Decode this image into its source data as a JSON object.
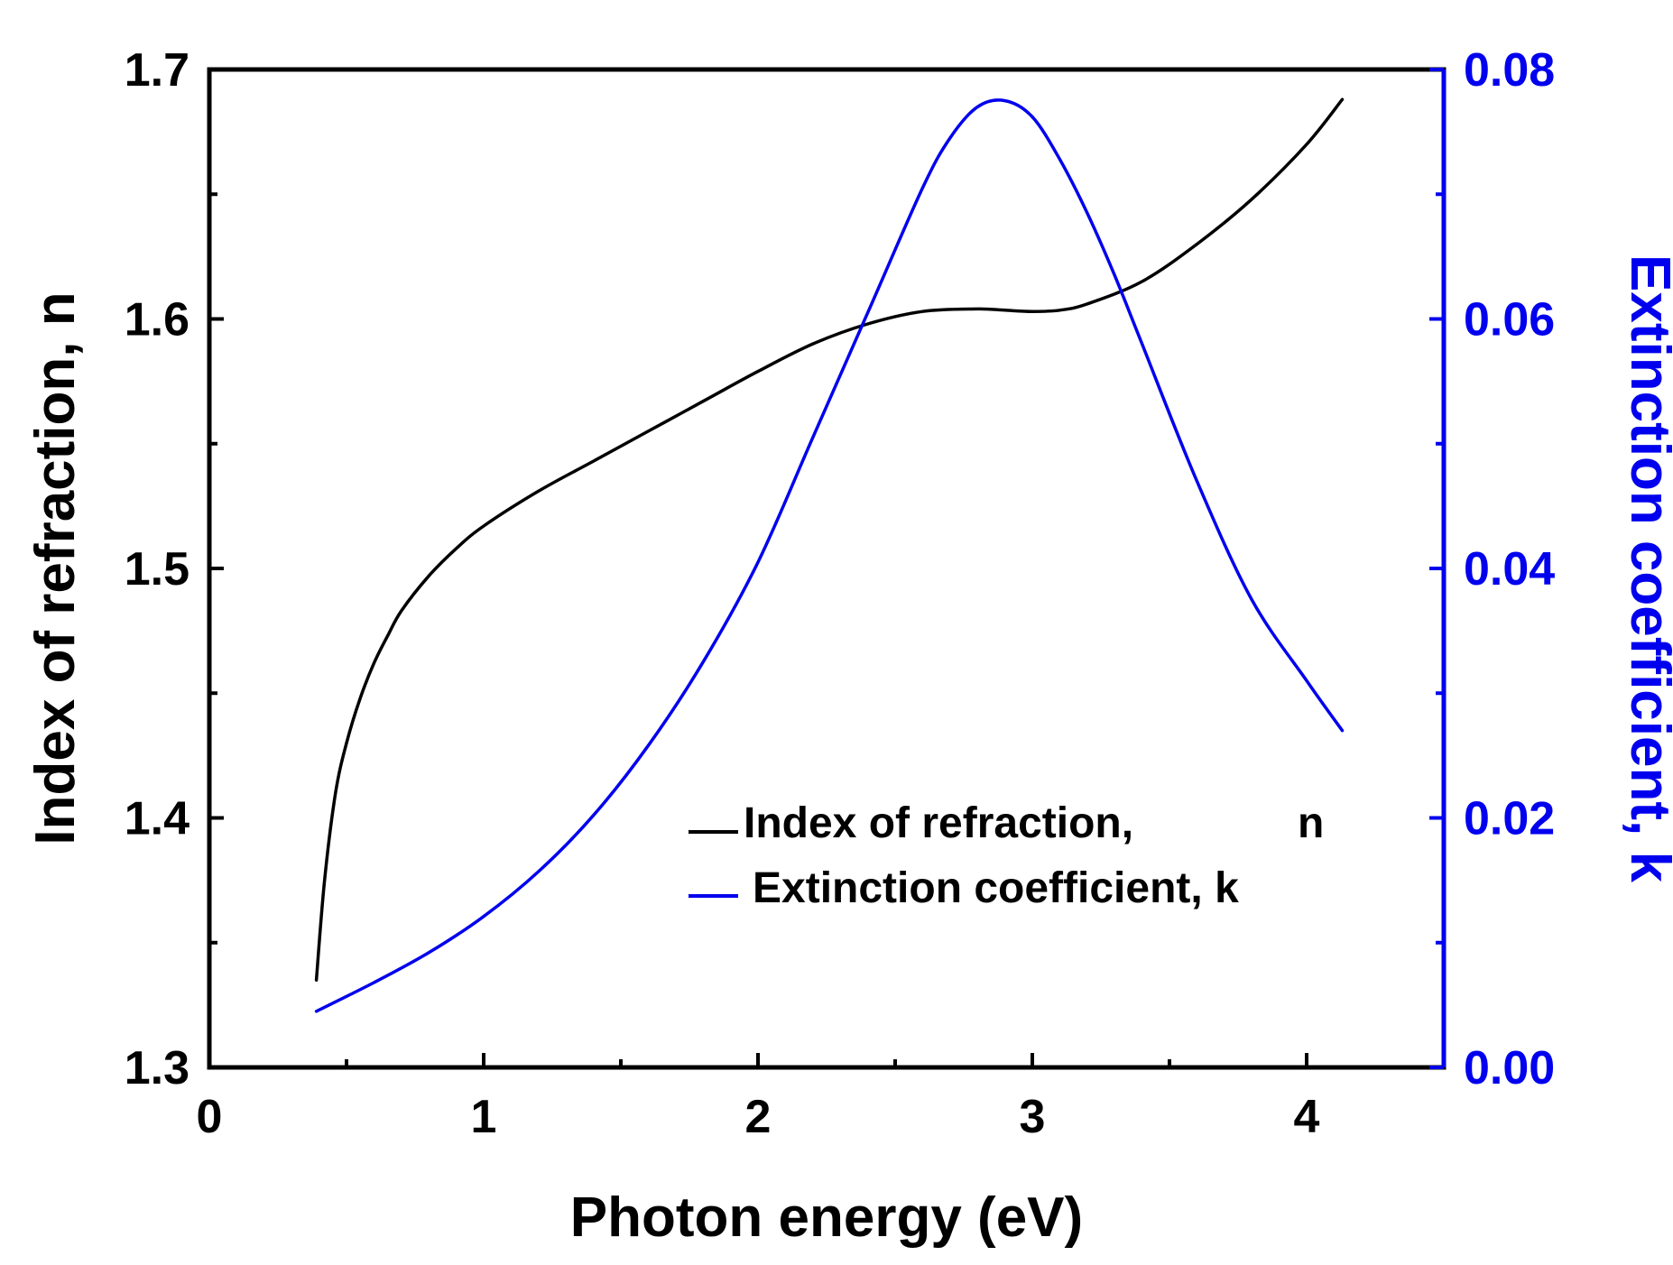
{
  "chart_data": {
    "type": "line",
    "title": "",
    "xlabel": "Photon energy (eV)",
    "ylabel": "Index of refraction, n",
    "ylabel_right": "Extinction coefficient, k",
    "xlim": [
      0,
      4.5
    ],
    "ylim": [
      1.3,
      1.7
    ],
    "ylim_right": [
      0.0,
      0.08
    ],
    "x_ticks": [
      "0",
      "1",
      "2",
      "3",
      "4"
    ],
    "y_ticks": [
      "1.3",
      "1.4",
      "1.5",
      "1.6",
      "1.7"
    ],
    "y_right_ticks": [
      "0.00",
      "0.02",
      "0.04",
      "0.06",
      "0.08"
    ],
    "grid": false,
    "legend_position": "bottom-right",
    "series": [
      {
        "name": "Index of refraction,",
        "name_suffix": "n",
        "axis": "left",
        "color": "#000000",
        "x": [
          0.39,
          0.42,
          0.46,
          0.5,
          0.55,
          0.6,
          0.65,
          0.7,
          0.8,
          0.9,
          1.0,
          1.2,
          1.4,
          1.6,
          1.8,
          2.0,
          2.2,
          2.4,
          2.6,
          2.8,
          2.9,
          3.0,
          3.1,
          3.2,
          3.4,
          3.6,
          3.8,
          4.0,
          4.13
        ],
        "y": [
          1.335,
          1.375,
          1.41,
          1.43,
          1.448,
          1.462,
          1.473,
          1.483,
          1.497,
          1.508,
          1.517,
          1.531,
          1.543,
          1.555,
          1.567,
          1.579,
          1.59,
          1.598,
          1.603,
          1.604,
          1.6035,
          1.603,
          1.6035,
          1.606,
          1.615,
          1.63,
          1.648,
          1.67,
          1.688
        ]
      },
      {
        "name": "Extinction coefficient, k",
        "axis": "right",
        "color": "#0000ee",
        "x": [
          0.39,
          0.6,
          0.8,
          1.0,
          1.2,
          1.4,
          1.6,
          1.8,
          2.0,
          2.2,
          2.4,
          2.6,
          2.7,
          2.8,
          2.9,
          3.0,
          3.1,
          3.2,
          3.3,
          3.4,
          3.6,
          3.8,
          4.0,
          4.13
        ],
        "y": [
          0.0045,
          0.0068,
          0.0092,
          0.0121,
          0.0157,
          0.0202,
          0.0258,
          0.0325,
          0.0405,
          0.0505,
          0.0605,
          0.0705,
          0.0745,
          0.077,
          0.0775,
          0.0762,
          0.0728,
          0.0685,
          0.0635,
          0.058,
          0.047,
          0.0375,
          0.031,
          0.027
        ]
      }
    ]
  }
}
